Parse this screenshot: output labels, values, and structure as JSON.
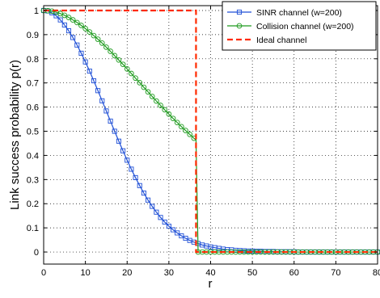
{
  "chart_data": {
    "type": "line",
    "xlabel": "r",
    "ylabel": "Link success probability p(r)",
    "xlim": [
      0,
      80
    ],
    "ylim": [
      -0.05,
      1.02
    ],
    "xticks": [
      0,
      10,
      20,
      30,
      40,
      50,
      60,
      70,
      80
    ],
    "xtick_labels": [
      "0",
      "10",
      "20",
      "30",
      "40",
      "50",
      "60",
      "70",
      "80"
    ],
    "yticks": [
      0,
      0.1,
      0.2,
      0.3,
      0.4,
      0.5,
      0.6,
      0.7,
      0.8,
      0.9,
      1
    ],
    "ytick_labels": [
      "0",
      "0.1",
      "0.2",
      "0.3",
      "0.4",
      "0.5",
      "0.6",
      "0.7",
      "0.8",
      "0.9",
      "1"
    ],
    "grid": true,
    "legend_position": "top-right",
    "series": [
      {
        "name": "SINR channel (w=200)",
        "color": "#1f4fd6",
        "marker": "square",
        "line_style": "solid",
        "x": [
          0,
          1,
          2,
          3,
          4,
          5,
          6,
          7,
          8,
          9,
          10,
          11,
          12,
          13,
          14,
          15,
          16,
          17,
          18,
          19,
          20,
          21,
          22,
          23,
          24,
          25,
          26,
          27,
          28,
          29,
          30,
          31,
          32,
          33,
          34,
          35,
          36,
          37,
          38,
          39,
          40,
          41,
          42,
          43,
          44,
          45,
          46,
          47,
          48,
          49,
          50,
          51,
          52,
          53,
          54,
          55,
          56,
          57,
          58,
          59,
          60,
          61,
          62,
          63,
          64,
          65,
          66,
          67,
          68,
          69,
          70,
          71,
          72,
          73,
          74,
          75,
          76,
          77,
          78,
          79,
          80
        ],
        "y": [
          1.0,
          0.998,
          0.99,
          0.978,
          0.961,
          0.94,
          0.916,
          0.888,
          0.857,
          0.823,
          0.787,
          0.749,
          0.709,
          0.668,
          0.626,
          0.584,
          0.542,
          0.5,
          0.459,
          0.419,
          0.38,
          0.343,
          0.308,
          0.275,
          0.244,
          0.215,
          0.189,
          0.165,
          0.143,
          0.124,
          0.107,
          0.092,
          0.079,
          0.067,
          0.057,
          0.048,
          0.041,
          0.035,
          0.029,
          0.025,
          0.021,
          0.018,
          0.015,
          0.012,
          0.01,
          0.009,
          0.007,
          0.006,
          0.005,
          0.004,
          0.004,
          0.003,
          0.003,
          0.002,
          0.002,
          0.002,
          0.001,
          0.001,
          0.001,
          0.001,
          0.001,
          0.0,
          0.0,
          0.0,
          0.0,
          0.0,
          0.0,
          0.0,
          0.0,
          0.0,
          0.0,
          0.0,
          0.0,
          0.0,
          0.0,
          0.0,
          0.0,
          0.0,
          0.0,
          0.0,
          0.0
        ]
      },
      {
        "name": "Collision channel (w=200)",
        "color": "#1e9b1e",
        "marker": "circle",
        "line_style": "solid",
        "x": [
          0,
          1,
          2,
          3,
          4,
          5,
          6,
          7,
          8,
          9,
          10,
          11,
          12,
          13,
          14,
          15,
          16,
          17,
          18,
          19,
          20,
          21,
          22,
          23,
          24,
          25,
          26,
          27,
          28,
          29,
          30,
          31,
          32,
          33,
          34,
          35,
          36,
          36.5,
          37,
          38,
          39,
          40,
          41,
          42,
          43,
          44,
          45,
          46,
          47,
          48,
          49,
          50,
          51,
          52,
          53,
          54,
          55,
          56,
          57,
          58,
          59,
          60,
          61,
          62,
          63,
          64,
          65,
          66,
          67,
          68,
          69,
          70,
          71,
          72,
          73,
          74,
          75,
          76,
          77,
          78,
          79,
          80
        ],
        "y": [
          1.0,
          0.999,
          0.997,
          0.993,
          0.987,
          0.98,
          0.971,
          0.961,
          0.95,
          0.938,
          0.925,
          0.911,
          0.896,
          0.881,
          0.865,
          0.848,
          0.831,
          0.813,
          0.795,
          0.777,
          0.758,
          0.739,
          0.72,
          0.701,
          0.682,
          0.663,
          0.644,
          0.625,
          0.607,
          0.589,
          0.571,
          0.553,
          0.536,
          0.519,
          0.503,
          0.487,
          0.471,
          0.465,
          0.0,
          0.0,
          0.0,
          0.0,
          0.0,
          0.0,
          0.0,
          0.0,
          0.0,
          0.0,
          0.0,
          0.0,
          0.0,
          0.0,
          0.0,
          0.0,
          0.0,
          0.0,
          0.0,
          0.0,
          0.0,
          0.0,
          0.0,
          0.0,
          0.0,
          0.0,
          0.0,
          0.0,
          0.0,
          0.0,
          0.0,
          0.0,
          0.0,
          0.0,
          0.0,
          0.0,
          0.0,
          0.0,
          0.0,
          0.0,
          0.0,
          0.0,
          0.0,
          0.0
        ]
      },
      {
        "name": "Ideal channel",
        "color": "#ff2a00",
        "marker": "none",
        "line_style": "dashed",
        "x": [
          0,
          36.5,
          36.5,
          80
        ],
        "y": [
          1,
          1,
          0,
          0
        ]
      }
    ]
  }
}
